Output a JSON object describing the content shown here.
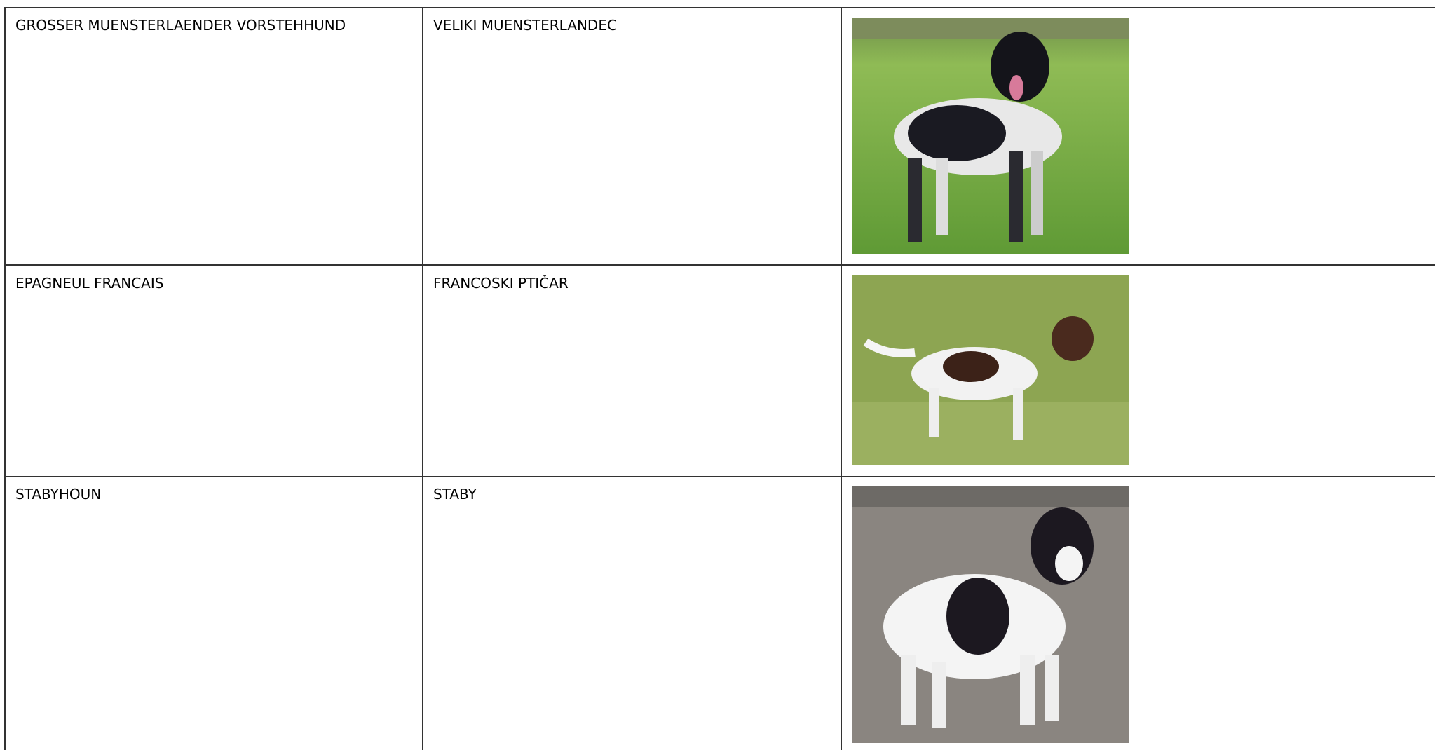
{
  "table": {
    "rows": [
      [
        "GROSSER MUENSTERLAENDER VORSTEHHUND",
        "VELIKI MUENSTERLANDEC"
      ],
      [
        "EPAGNEUL FRANCAIS",
        "FRANCOSKI PTIČAR"
      ],
      [
        "STABYHOUN",
        "STABY"
      ]
    ]
  }
}
